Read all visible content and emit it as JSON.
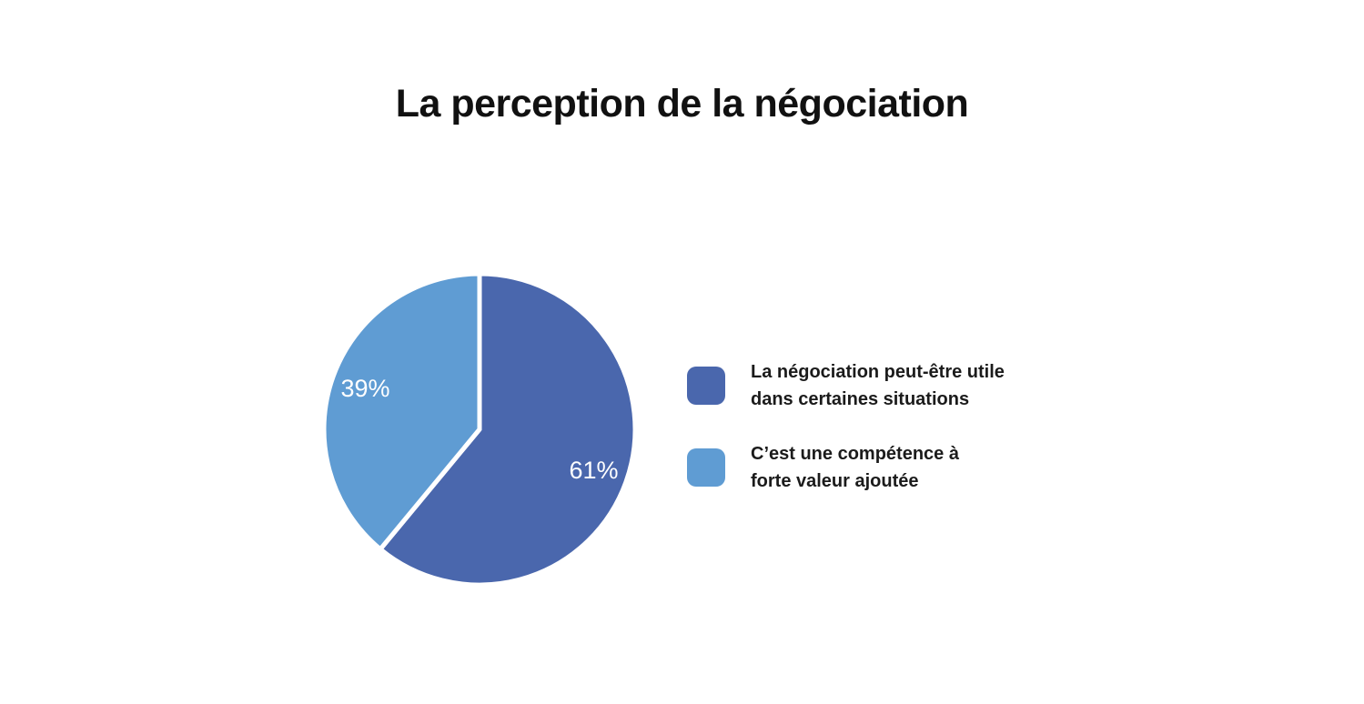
{
  "colors": {
    "background": "#ffffff",
    "slice_dark_blue": "#4a67ad",
    "slice_light_blue": "#5f9cd3",
    "percent_labels": "#ffffff",
    "title_text": "#111111",
    "legend_text": "#1b1b1b"
  },
  "chart_data": {
    "type": "pie",
    "title": "La perception de la négociation",
    "slices": [
      {
        "label": "La négociation peut-être utile dans certaines situations",
        "value": 61,
        "display_label": "61%",
        "color": "#4a67ad"
      },
      {
        "label": "C’est une compétence à forte valeur ajoutée",
        "value": 39,
        "display_label": "39%",
        "color": "#5f9cd3"
      }
    ],
    "start_angle_deg": 0,
    "direction": "clockwise",
    "data_labels": "percent shown in white inside each slice",
    "legend_position": "right",
    "slice_separator": "white stroke"
  },
  "legend": {
    "items": [
      {
        "lines": [
          "La négociation peut-être utile",
          "dans certaines situations"
        ]
      },
      {
        "lines": [
          "C’est une compétence à",
          "forte valeur ajoutée"
        ]
      }
    ]
  }
}
